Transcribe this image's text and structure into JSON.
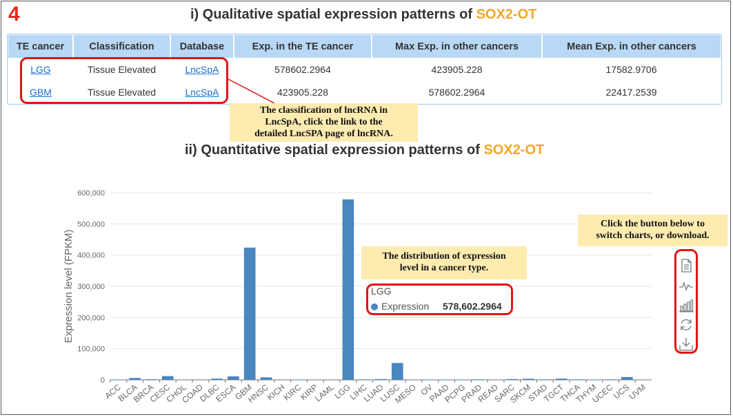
{
  "step_number": "4",
  "section1": {
    "prefix": "i) Qualitative spatial expression patterns of ",
    "gene": "SOX2-OT"
  },
  "section2": {
    "prefix": "ii) Quantitative spatial expression patterns of ",
    "gene": "SOX2-OT"
  },
  "table": {
    "headers": [
      "TE cancer",
      "Classification",
      "Database",
      "Exp. in the TE cancer",
      "Max Exp. in other cancers",
      "Mean Exp. in other cancers"
    ],
    "rows": [
      {
        "cancer": "LGG",
        "classification": "Tissue Elevated",
        "database": "LncSpA",
        "exp_te": "578602.2964",
        "max_other": "423905.228",
        "mean_other": "17582.9706"
      },
      {
        "cancer": "GBM",
        "classification": "Tissue Elevated",
        "database": "LncSpA",
        "exp_te": "423905.228",
        "max_other": "578602.2964",
        "mean_other": "22417.2539"
      }
    ]
  },
  "notes": {
    "classification": [
      "The classification of lncRNA in",
      "LncSpA, click the link to the",
      "detailed LncSPA page of lncRNA."
    ],
    "distribution": [
      "The distribution of expression",
      "level in a cancer type."
    ],
    "buttons": [
      "Click the button below to",
      "switch charts, or download."
    ]
  },
  "tooltip": {
    "category": "LGG",
    "series": "Expression",
    "value": "578,602.2964"
  },
  "toolbox": [
    "data-view-icon",
    "line-chart-icon",
    "bar-chart-icon",
    "restore-icon",
    "download-icon"
  ],
  "colors": {
    "bar": "#4a86c0",
    "accent": "#f4a626",
    "highlight": "#e01515",
    "note_bg": "#fdebb0",
    "header_bg": "#b8d8f6"
  },
  "chart_data": {
    "type": "bar",
    "ylabel": "Expression level (FPKM)",
    "ylim": [
      0,
      600000
    ],
    "yticks": [
      "0",
      "100,000",
      "200,000",
      "300,000",
      "400,000",
      "500,000",
      "600,000"
    ],
    "categories": [
      "ACC",
      "BLCA",
      "BRCA",
      "CESC",
      "CHOL",
      "COAD",
      "DLBC",
      "ESCA",
      "GBM",
      "HNSC",
      "KICH",
      "KIRC",
      "KIRP",
      "LAML",
      "LGG",
      "LIHC",
      "LUAD",
      "LUSC",
      "MESO",
      "OV",
      "PAAD",
      "PCPG",
      "PRAD",
      "READ",
      "SARC",
      "SKCM",
      "STAD",
      "TGCT",
      "THCA",
      "THYM",
      "UCEC",
      "UCS",
      "UVM"
    ],
    "series": [
      {
        "name": "Expression",
        "values": [
          1000,
          6000,
          2000,
          12000,
          0,
          500,
          4000,
          11000,
          423905,
          8000,
          200,
          1000,
          500,
          0,
          578602,
          1500,
          2500,
          54000,
          500,
          1000,
          1000,
          1000,
          1500,
          500,
          2500,
          3500,
          1500,
          4000,
          1500,
          1000,
          1500,
          9000,
          500
        ]
      }
    ]
  }
}
